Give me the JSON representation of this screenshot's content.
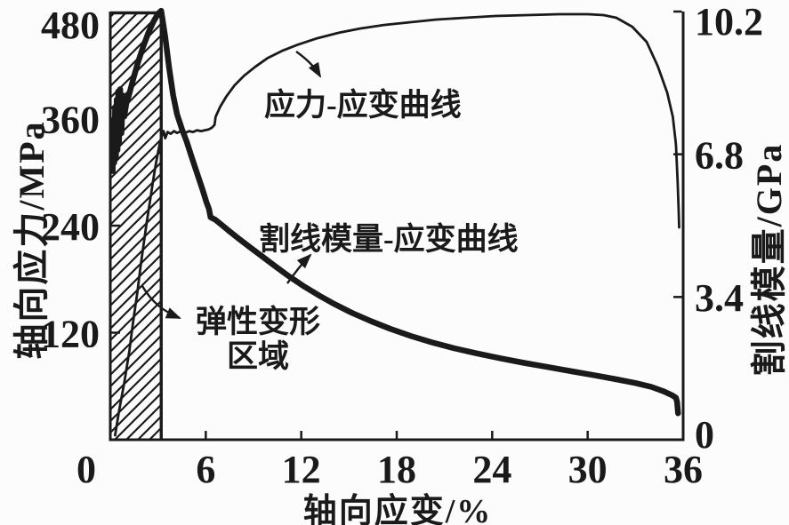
{
  "colors": {
    "ink": "#1a1a1a",
    "background": "#fcfcfc"
  },
  "chart_data": {
    "type": "line",
    "title": "",
    "xlabel": "轴向应变/%",
    "ylabel_left": "轴向应力/MPa",
    "ylabel_right": "割线模量/GPa",
    "xlim": [
      0,
      36
    ],
    "ylim_left": [
      0,
      480
    ],
    "ylim_right": [
      0,
      10.2
    ],
    "x_ticks": [
      0,
      6,
      12,
      18,
      24,
      30,
      36
    ],
    "y_left_ticks": [
      120,
      240,
      360,
      480
    ],
    "y_right_ticks": [
      0,
      3.4,
      6.8,
      10.2
    ],
    "grid": false,
    "legend_position": "inline-annotations",
    "series": [
      {
        "name": "应力-应变曲线",
        "axis": "left",
        "line": "thin",
        "points": [
          [
            0.3,
            5
          ],
          [
            0.55,
            32
          ],
          [
            0.89,
            65
          ],
          [
            1.2,
            100
          ],
          [
            1.45,
            134
          ],
          [
            1.7,
            165
          ],
          [
            1.9,
            194
          ],
          [
            2.1,
            220
          ],
          [
            2.29,
            244
          ],
          [
            2.5,
            268
          ],
          [
            2.68,
            289
          ],
          [
            2.85,
            308
          ],
          [
            3.02,
            324
          ],
          [
            3.15,
            335
          ],
          [
            3.24,
            341
          ],
          [
            3.35,
            346
          ],
          [
            3.45,
            338
          ],
          [
            3.6,
            345
          ],
          [
            3.8,
            343
          ],
          [
            4.0,
            346
          ],
          [
            4.2,
            344
          ],
          [
            4.45,
            346
          ],
          [
            4.7,
            344
          ],
          [
            4.95,
            346
          ],
          [
            5.2,
            345
          ],
          [
            5.45,
            347
          ],
          [
            5.7,
            346
          ],
          [
            5.95,
            347
          ],
          [
            6.2,
            348
          ],
          [
            6.4,
            350
          ],
          [
            6.55,
            353
          ],
          [
            6.62,
            362
          ],
          [
            6.9,
            373
          ],
          [
            7.3,
            385
          ],
          [
            7.8,
            397
          ],
          [
            8.4,
            408
          ],
          [
            9.1,
            418
          ],
          [
            9.9,
            428
          ],
          [
            10.8,
            436
          ],
          [
            11.8,
            443
          ],
          [
            13.0,
            450
          ],
          [
            14.3,
            456
          ],
          [
            15.7,
            461
          ],
          [
            17.2,
            465
          ],
          [
            18.8,
            468
          ],
          [
            20.5,
            471
          ],
          [
            22.3,
            473
          ],
          [
            24.2,
            475
          ],
          [
            26.2,
            476
          ],
          [
            28.2,
            477
          ],
          [
            30.0,
            477
          ],
          [
            31.0,
            476
          ],
          [
            31.8,
            473
          ],
          [
            32.8,
            463
          ],
          [
            33.7,
            446
          ],
          [
            34.4,
            419
          ],
          [
            35.0,
            389
          ],
          [
            35.35,
            362
          ],
          [
            35.55,
            331
          ],
          [
            35.65,
            292
          ],
          [
            35.72,
            256
          ],
          [
            35.75,
            238
          ]
        ]
      },
      {
        "name": "割线模量-应变曲线",
        "axis": "right",
        "line": "thick",
        "points": [
          [
            0.15,
            6.4
          ],
          [
            0.2,
            7.6
          ],
          [
            0.25,
            6.6
          ],
          [
            0.3,
            7.9
          ],
          [
            0.35,
            6.7
          ],
          [
            0.4,
            8.1
          ],
          [
            0.45,
            6.9
          ],
          [
            0.5,
            8.3
          ],
          [
            0.55,
            7.1
          ],
          [
            0.62,
            8.35
          ],
          [
            0.7,
            7.3
          ],
          [
            0.78,
            8.2
          ],
          [
            0.88,
            7.7
          ],
          [
            1.0,
            8.0
          ],
          [
            1.2,
            8.25
          ],
          [
            1.45,
            8.6
          ],
          [
            1.75,
            9.0
          ],
          [
            2.05,
            9.35
          ],
          [
            2.4,
            9.7
          ],
          [
            2.7,
            9.95
          ],
          [
            3.0,
            10.15
          ],
          [
            3.2,
            10.22
          ],
          [
            3.45,
            9.6
          ],
          [
            3.7,
            8.85
          ],
          [
            3.95,
            8.2
          ],
          [
            4.2,
            7.75
          ],
          [
            4.5,
            7.4
          ],
          [
            4.8,
            7.1
          ],
          [
            5.1,
            6.75
          ],
          [
            5.45,
            6.35
          ],
          [
            5.8,
            5.95
          ],
          [
            6.05,
            5.65
          ],
          [
            6.2,
            5.5
          ],
          [
            6.3,
            5.3
          ],
          [
            6.6,
            5.24
          ],
          [
            7.0,
            5.12
          ],
          [
            7.5,
            4.96
          ],
          [
            8.1,
            4.78
          ],
          [
            8.8,
            4.58
          ],
          [
            9.5,
            4.38
          ],
          [
            10.3,
            4.15
          ],
          [
            11.2,
            3.9
          ],
          [
            12.1,
            3.67
          ],
          [
            13.1,
            3.44
          ],
          [
            14.1,
            3.23
          ],
          [
            15.2,
            3.02
          ],
          [
            16.4,
            2.82
          ],
          [
            17.6,
            2.64
          ],
          [
            18.9,
            2.47
          ],
          [
            20.2,
            2.32
          ],
          [
            21.6,
            2.18
          ],
          [
            23.0,
            2.06
          ],
          [
            24.5,
            1.94
          ],
          [
            26.0,
            1.83
          ],
          [
            27.5,
            1.73
          ],
          [
            29.0,
            1.63
          ],
          [
            30.5,
            1.53
          ],
          [
            31.8,
            1.44
          ],
          [
            33.0,
            1.35
          ],
          [
            34.0,
            1.26
          ],
          [
            34.8,
            1.15
          ],
          [
            35.3,
            1.06
          ],
          [
            35.55,
            1.0
          ],
          [
            35.62,
            0.9
          ],
          [
            35.68,
            0.63
          ]
        ]
      }
    ],
    "regions": [
      {
        "name": "弹性变形区域",
        "x_range": [
          0,
          3.2
        ],
        "style": "diagonal-hatch"
      }
    ]
  },
  "annotations": {
    "stress_curve_label": "应力-应变曲线",
    "modulus_curve_label": "割线模量-应变曲线",
    "elastic_region_line1": "弹性变形",
    "elastic_region_line2": "区域"
  }
}
